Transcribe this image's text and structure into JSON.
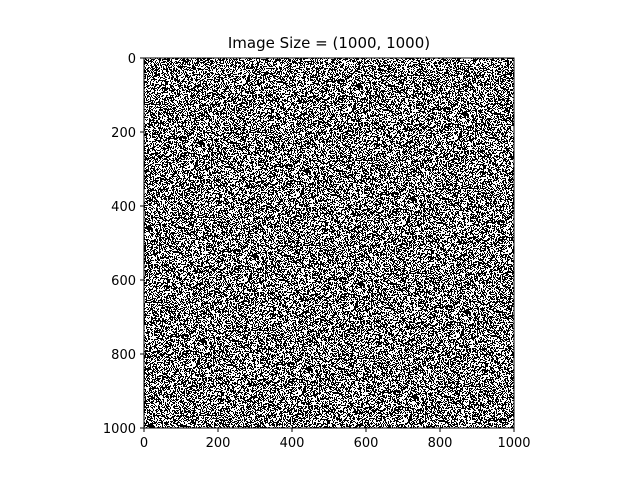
{
  "chart_data": {
    "type": "heatmap",
    "title": "Image Size = (1000, 1000)",
    "image_size": [
      1000,
      1000
    ],
    "colormap": "binary (black/white random noise)",
    "xlim": [
      0,
      1000
    ],
    "ylim": [
      1000,
      0
    ],
    "x_ticks": [
      0,
      200,
      400,
      600,
      800,
      1000
    ],
    "y_ticks": [
      0,
      200,
      400,
      600,
      800,
      1000
    ],
    "xlabel": "",
    "ylabel": "",
    "grid": false
  }
}
